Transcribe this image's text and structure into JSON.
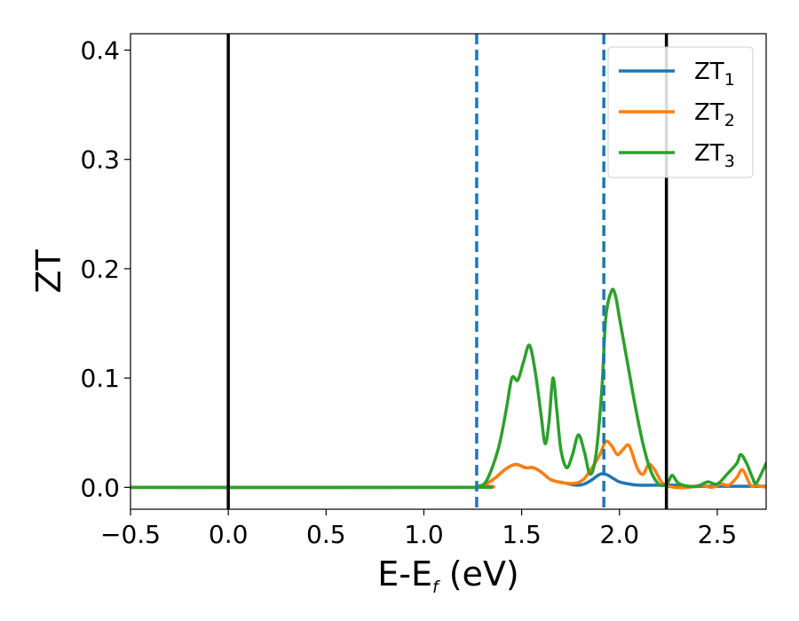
{
  "chart_data": {
    "type": "line",
    "title": "",
    "xlabel": {
      "main": "E-E",
      "sub": "f",
      "suffix": " (eV)"
    },
    "ylabel": "ZT",
    "xlim": [
      -0.5,
      2.75
    ],
    "ylim": [
      -0.02,
      0.415
    ],
    "xticks": [
      -0.5,
      0.0,
      0.5,
      1.0,
      1.5,
      2.0,
      2.5
    ],
    "xtick_labels": [
      "−0.5",
      "0.0",
      "0.5",
      "1.0",
      "1.5",
      "2.0",
      "2.5"
    ],
    "yticks": [
      0.0,
      0.1,
      0.2,
      0.3,
      0.4
    ],
    "ytick_labels": [
      "0.0",
      "0.1",
      "0.2",
      "0.3",
      "0.4"
    ],
    "grid": false,
    "legend_position": "top-right",
    "vlines": [
      {
        "x": 0.0,
        "style": "solid",
        "color": "#000000"
      },
      {
        "x": 2.24,
        "style": "solid",
        "color": "#000000"
      },
      {
        "x": 1.27,
        "style": "dashed",
        "color": "#1f77b4"
      },
      {
        "x": 1.92,
        "style": "dashed",
        "color": "#1f77b4"
      }
    ],
    "series": [
      {
        "name": "ZT",
        "name_sub": "1",
        "color": "#1f77b4",
        "x": [
          -0.5,
          1.2,
          1.3,
          1.36,
          1.42,
          1.47,
          1.52,
          1.56,
          1.6,
          1.65,
          1.72,
          1.78,
          1.82,
          1.86,
          1.9,
          1.93,
          1.97,
          2.0,
          2.05,
          2.1,
          2.2,
          2.28,
          2.35,
          2.45,
          2.5,
          2.55,
          2.6,
          2.65,
          2.7,
          2.75
        ],
        "y": [
          0.0,
          0.0,
          0.002,
          0.008,
          0.017,
          0.021,
          0.018,
          0.018,
          0.014,
          0.007,
          0.004,
          0.002,
          0.003,
          0.007,
          0.012,
          0.012,
          0.008,
          0.005,
          0.003,
          0.002,
          0.002,
          0.002,
          0.001,
          0.001,
          0.001,
          0.001,
          0.001,
          0.001,
          0.001,
          0.001
        ]
      },
      {
        "name": "ZT",
        "name_sub": "2",
        "color": "#ff7f0e",
        "x": [
          -0.5,
          1.2,
          1.3,
          1.36,
          1.42,
          1.47,
          1.52,
          1.56,
          1.6,
          1.65,
          1.72,
          1.78,
          1.82,
          1.86,
          1.9,
          1.93,
          1.96,
          1.99,
          2.02,
          2.05,
          2.09,
          2.12,
          2.15,
          2.18,
          2.22,
          2.28,
          2.35,
          2.42,
          2.47,
          2.52,
          2.56,
          2.6,
          2.63,
          2.67,
          2.7,
          2.75
        ],
        "y": [
          0.0,
          0.0,
          0.002,
          0.008,
          0.017,
          0.021,
          0.018,
          0.018,
          0.014,
          0.007,
          0.004,
          0.004,
          0.008,
          0.018,
          0.03,
          0.042,
          0.038,
          0.03,
          0.035,
          0.038,
          0.018,
          0.012,
          0.021,
          0.016,
          0.004,
          0.0,
          0.0,
          0.002,
          0.0,
          0.003,
          0.002,
          0.009,
          0.016,
          0.002,
          0.002,
          0.0
        ]
      },
      {
        "name": "ZT",
        "name_sub": "3",
        "color": "#2ca02c",
        "x": [
          -0.5,
          1.2,
          1.27,
          1.32,
          1.38,
          1.42,
          1.45,
          1.48,
          1.51,
          1.54,
          1.57,
          1.6,
          1.62,
          1.64,
          1.66,
          1.68,
          1.7,
          1.73,
          1.76,
          1.79,
          1.82,
          1.85,
          1.88,
          1.91,
          1.93,
          1.96,
          1.98,
          2.0,
          2.04,
          2.08,
          2.12,
          2.16,
          2.2,
          2.23,
          2.25,
          2.27,
          2.3,
          2.35,
          2.4,
          2.45,
          2.5,
          2.55,
          2.6,
          2.62,
          2.65,
          2.68,
          2.7,
          2.75
        ],
        "y": [
          0.0,
          0.0,
          0.001,
          0.006,
          0.035,
          0.07,
          0.1,
          0.098,
          0.115,
          0.13,
          0.105,
          0.065,
          0.04,
          0.06,
          0.1,
          0.07,
          0.035,
          0.018,
          0.03,
          0.048,
          0.033,
          0.012,
          0.03,
          0.09,
          0.155,
          0.18,
          0.175,
          0.155,
          0.115,
          0.075,
          0.04,
          0.015,
          0.003,
          0.002,
          0.005,
          0.011,
          0.004,
          0.001,
          0.001,
          0.005,
          0.003,
          0.012,
          0.022,
          0.03,
          0.022,
          0.009,
          0.004,
          0.022
        ]
      }
    ]
  }
}
